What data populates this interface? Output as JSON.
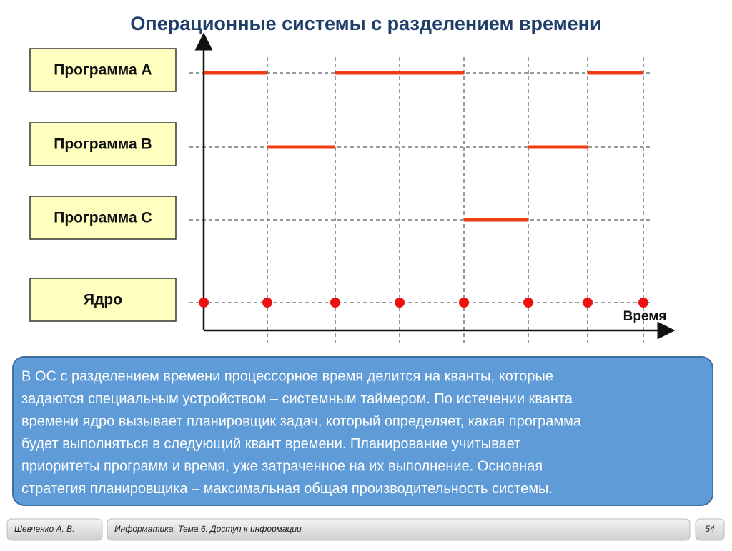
{
  "title": "Операционные системы с разделением времени",
  "rows": [
    {
      "label": "Программа A"
    },
    {
      "label": "Программа B"
    },
    {
      "label": "Программа C"
    },
    {
      "label": "Ядро"
    }
  ],
  "axis_label": "Время",
  "description": [
    "В ОС с разделением времени процессорное время делится на кванты, которые",
    "задаются специальным устройством – системным таймером. По истечении кванта",
    "времени ядро вызывает планировщик задач, который определяет, какая программа",
    "будет выполняться в следующий квант времени. Планирование учитывает",
    "приоритеты программ и время, уже затраченное на их выполнение. Основная",
    "стратегия планировщика – максимальная общая производительность системы."
  ],
  "footer": {
    "author": "Шевченко А. В.",
    "course": "Информатика. Тема 6. Доступ к информации",
    "page": "54"
  }
}
